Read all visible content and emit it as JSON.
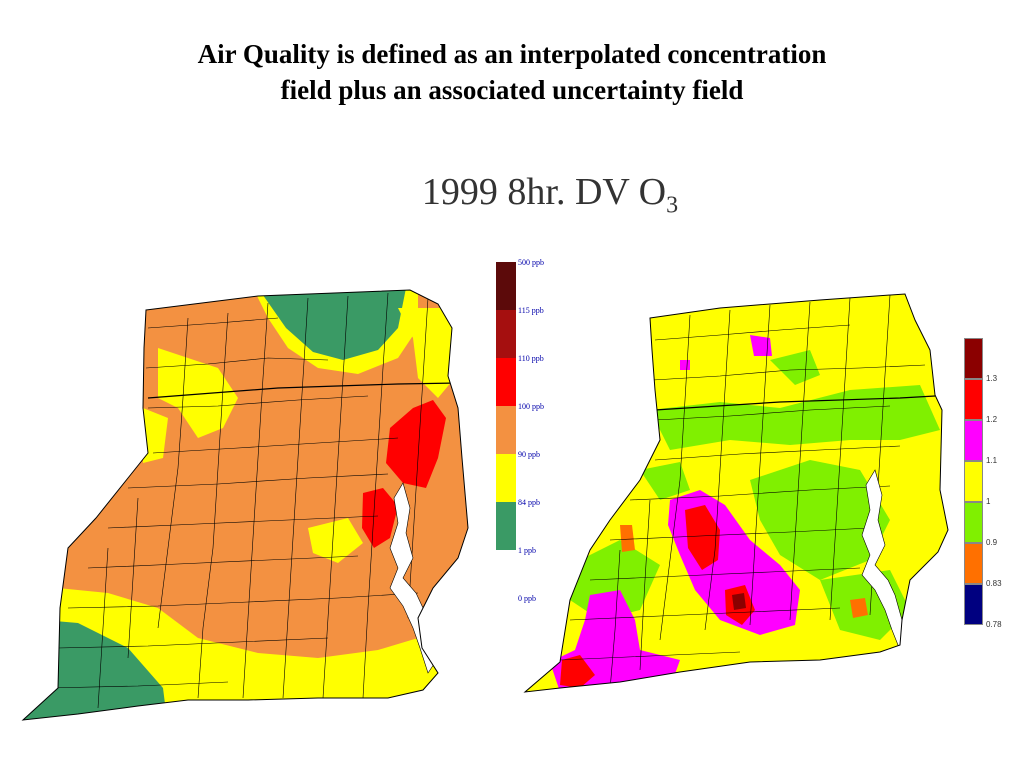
{
  "title_line1": "Air Quality is defined as an interpolated concentration",
  "title_line2": "field plus an associated uncertainty field",
  "subtitle_main": "1999 8hr. DV O",
  "subtitle_sub": "3",
  "legend_left": {
    "colors": [
      "#5c0a0a",
      "#a50f0f",
      "#ff0000",
      "#f39141",
      "#ffff00",
      "#3a9a65"
    ],
    "labels": [
      "500 ppb",
      "115 ppb",
      "110 ppb",
      "100 ppb",
      "90 ppb",
      "84 ppb",
      "1 ppb",
      "0 ppb"
    ]
  },
  "legend_right": {
    "colors": [
      "#8b0000",
      "#ff0000",
      "#ff00ff",
      "#ffff00",
      "#80f000",
      "#ff7000",
      "#000080"
    ],
    "labels": [
      "1.3",
      "1.2",
      "1.1",
      "1",
      "0.9",
      "0.83",
      "0.78"
    ]
  }
}
